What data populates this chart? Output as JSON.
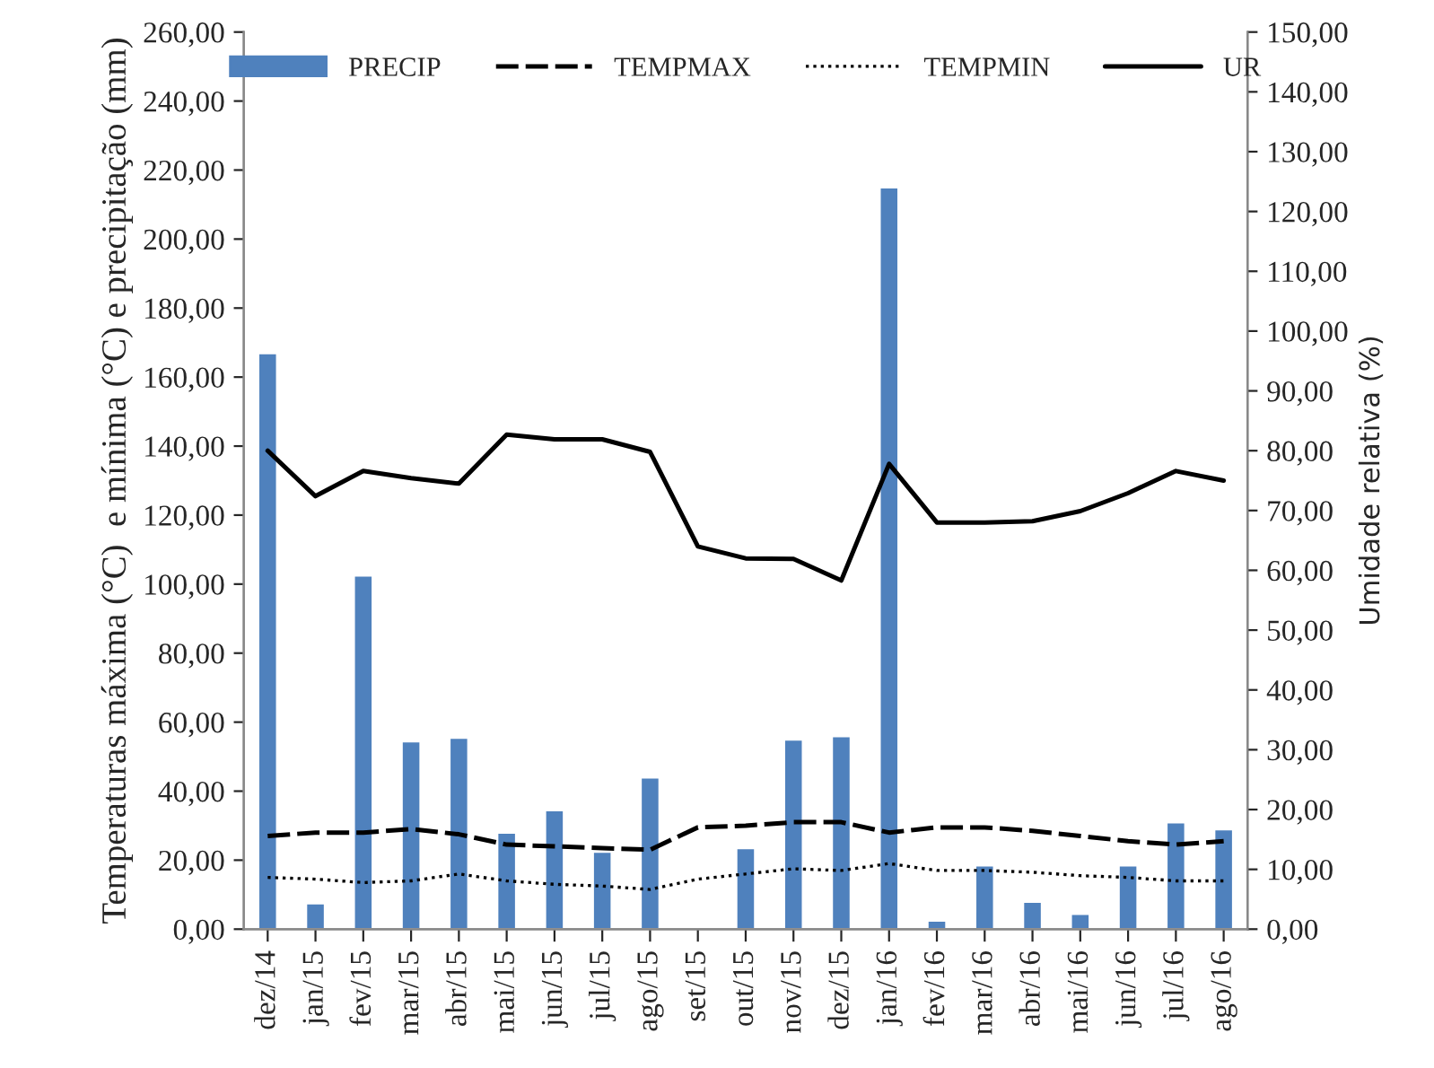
{
  "chart_data": {
    "type": "bar",
    "ylabel": "Temperaturas máxima (°C)  e mínima (°C) e precipitação (mm)",
    "y2label": "Umidade relativa (%)",
    "categories": [
      "dez/14",
      "jan/15",
      "fev/15",
      "mar/15",
      "abr/15",
      "mai/15",
      "jun/15",
      "jul/15",
      "ago/15",
      "set/15",
      "out/15",
      "nov/15",
      "dez/15",
      "jan/16",
      "fev/16",
      "mar/16",
      "abr/16",
      "mai/16",
      "jun/16",
      "jul/16",
      "ago/16"
    ],
    "series": [
      {
        "name": "PRECIP",
        "color": "#4f81bd",
        "values": [
          167,
          7.5,
          102.5,
          54.5,
          55.5,
          28,
          34.5,
          22.5,
          44,
          null,
          23.5,
          55,
          56,
          215,
          2.5,
          18.5,
          8,
          4.5,
          18.5,
          31,
          29
        ]
      },
      {
        "name": "TEMPMAX",
        "type": "line",
        "line_style": "dashed",
        "color": "#000000",
        "values": [
          27,
          28,
          28,
          29,
          27.5,
          24.5,
          24,
          23.5,
          23,
          29.5,
          30,
          31,
          31,
          28,
          29.5,
          29.5,
          28.5,
          27,
          25.5,
          24.5,
          25.5
        ]
      },
      {
        "name": "TEMPMIN",
        "type": "line",
        "line_style": "dotted",
        "color": "#000000",
        "values": [
          15,
          14.5,
          13.5,
          14,
          16,
          14,
          13,
          12.5,
          11.5,
          14.5,
          16,
          17.5,
          17,
          19,
          17,
          17,
          16.5,
          15.5,
          15,
          14,
          14
        ]
      },
      {
        "name": "UR",
        "type": "line",
        "line_style": "solid",
        "axis": "y2",
        "color": "#000000",
        "values": [
          80,
          72.4,
          76.6,
          75.4,
          74.5,
          82.7,
          81.9,
          81.9,
          79.8,
          64,
          62,
          61.9,
          58.3,
          77.8,
          68,
          68,
          68.2,
          69.9,
          72.9,
          76.6,
          75
        ]
      }
    ],
    "ylim": [
      0,
      260
    ],
    "yticks": [
      {
        "value": 0,
        "label": "0,00"
      },
      {
        "value": 20,
        "label": "20,00"
      },
      {
        "value": 40,
        "label": "40,00"
      },
      {
        "value": 60,
        "label": "60,00"
      },
      {
        "value": 80,
        "label": "80,00"
      },
      {
        "value": 100,
        "label": "100,00"
      },
      {
        "value": 120,
        "label": "120,00"
      },
      {
        "value": 140,
        "label": "140,00"
      },
      {
        "value": 160,
        "label": "160,00"
      },
      {
        "value": 180,
        "label": "180,00"
      },
      {
        "value": 200,
        "label": "200,00"
      },
      {
        "value": 220,
        "label": "220,00"
      },
      {
        "value": 240,
        "label": "240,00"
      },
      {
        "value": 260,
        "label": "260,00"
      }
    ],
    "y2lim": [
      0,
      150
    ],
    "y2ticks": [
      {
        "value": 0,
        "label": "0,00"
      },
      {
        "value": 10,
        "label": "10,00"
      },
      {
        "value": 20,
        "label": "20,00"
      },
      {
        "value": 30,
        "label": "30,00"
      },
      {
        "value": 40,
        "label": "40,00"
      },
      {
        "value": 50,
        "label": "50,00"
      },
      {
        "value": 60,
        "label": "60,00"
      },
      {
        "value": 70,
        "label": "70,00"
      },
      {
        "value": 80,
        "label": "80,00"
      },
      {
        "value": 90,
        "label": "90,00"
      },
      {
        "value": 100,
        "label": "100,00"
      },
      {
        "value": 110,
        "label": "110,00"
      },
      {
        "value": 120,
        "label": "120,00"
      },
      {
        "value": 130,
        "label": "130,00"
      },
      {
        "value": 140,
        "label": "140,00"
      },
      {
        "value": 150,
        "label": "150,00"
      }
    ],
    "legend": "top",
    "grid": false
  }
}
